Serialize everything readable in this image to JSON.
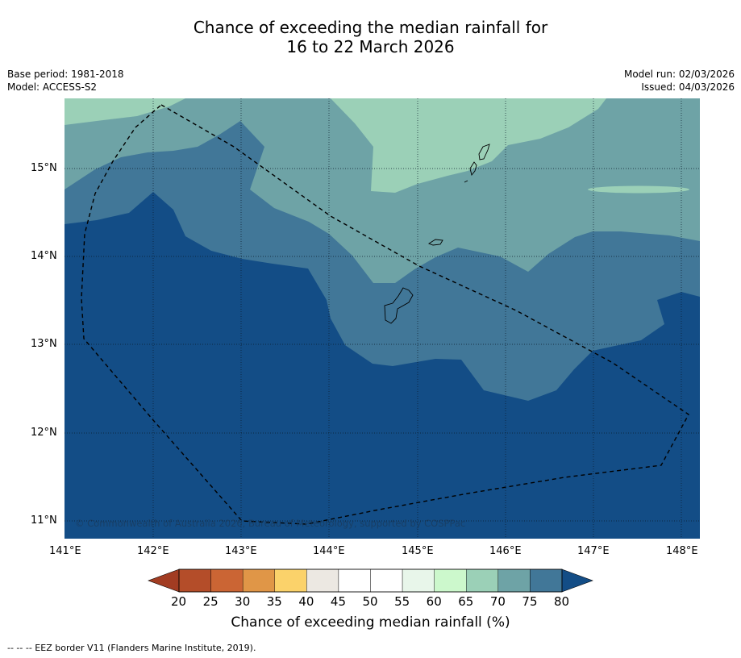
{
  "title": {
    "line1": "Chance of exceeding the median rainfall for",
    "line2": "16 to 22 March 2026"
  },
  "meta": {
    "base_period": "Base period: 1981-2018",
    "model": "Model: ACCESS-S2",
    "model_run": "Model run: 02/03/2026",
    "issued": "Issued: 04/03/2026"
  },
  "map": {
    "lon_labels": [
      "141°E",
      "142°E",
      "143°E",
      "144°E",
      "145°E",
      "146°E",
      "147°E",
      "148°E"
    ],
    "lat_labels": [
      "15°N",
      "14°N",
      "13°N",
      "12°N",
      "11°N"
    ],
    "copyright": "© Commonwealth of Australia 2026, Bureau of Meteorology, supported by COSPPac",
    "colors": {
      "band_80": "#134d86",
      "band_75_80": "#417798",
      "band_70_75": "#6ea3a6",
      "band_65_70": "#9bd0b7"
    }
  },
  "colorbar": {
    "label": "Chance of exceeding median rainfall (%)",
    "ticks": [
      "20",
      "25",
      "30",
      "35",
      "40",
      "45",
      "50",
      "55",
      "60",
      "65",
      "70",
      "75",
      "80"
    ],
    "colors": [
      "#a23c22",
      "#b44d29",
      "#cb6534",
      "#e09647",
      "#fbd26a",
      "#ece8e2",
      "#ffffff",
      "#ffffff",
      "#e8f6ea",
      "#ccf8cc",
      "#9bd0b7",
      "#6ea3a6",
      "#417798",
      "#134d86"
    ]
  },
  "footer": "--  --  -- EEZ border V11 (Flanders Marine Institute, 2019)."
}
